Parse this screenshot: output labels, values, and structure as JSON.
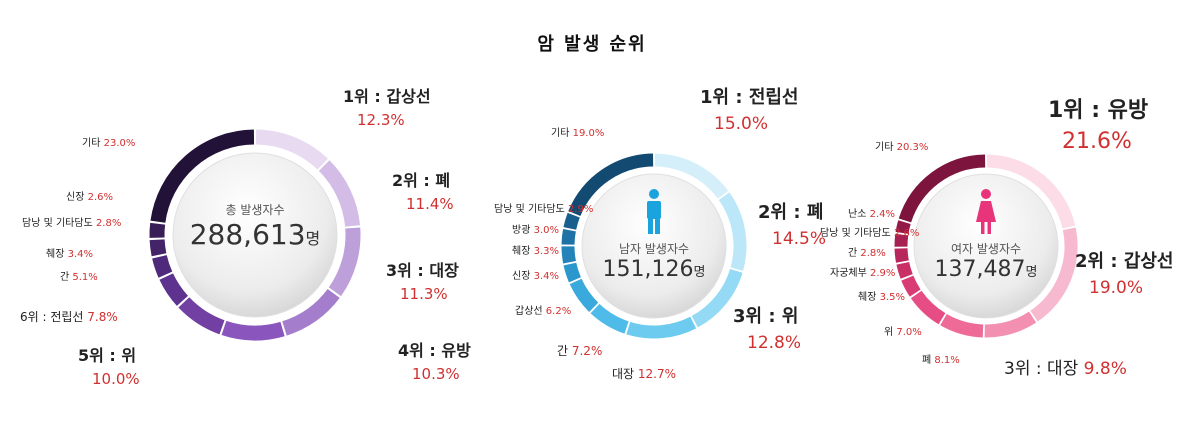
{
  "title": "암 발생 순위",
  "colors": {
    "percent": "#d03030",
    "title": "#111111"
  },
  "chart_data": [
    {
      "type": "pie",
      "center_label": "총 발생자수",
      "center_value": "288,613",
      "center_unit": "명",
      "slices": [
        {
          "name": "갑상선",
          "value": 12.3,
          "rank": "1위",
          "label": "1위 : 갑상선",
          "pct": "12.3%",
          "color": "#e7daf1"
        },
        {
          "name": "폐",
          "value": 11.4,
          "rank": "2위",
          "label": "2위 : 폐",
          "pct": "11.4%",
          "color": "#d3bde6"
        },
        {
          "name": "대장",
          "value": 11.3,
          "rank": "3위",
          "label": "3위 : 대장",
          "pct": "11.3%",
          "color": "#bd9fd9"
        },
        {
          "name": "유방",
          "value": 10.3,
          "rank": "4위",
          "label": "4위 : 유방",
          "pct": "10.3%",
          "color": "#a47dcc"
        },
        {
          "name": "위",
          "value": 10.0,
          "rank": "5위",
          "label": "5위 : 위",
          "pct": "10.0%",
          "color": "#8a55bd"
        },
        {
          "name": "전립선",
          "value": 7.8,
          "rank": "6위",
          "label": "6위 : 전립선",
          "pct": "7.8%",
          "color": "#7240a3"
        },
        {
          "name": "간",
          "value": 5.1,
          "label": "간",
          "pct": "5.1%",
          "color": "#5e3390"
        },
        {
          "name": "췌장",
          "value": 3.4,
          "label": "췌장",
          "pct": "3.4%",
          "color": "#4f2a7c"
        },
        {
          "name": "담낭 및 기타담도",
          "value": 2.8,
          "label": "담낭 및 기타담도",
          "pct": "2.8%",
          "color": "#432468"
        },
        {
          "name": "신장",
          "value": 2.6,
          "label": "신장",
          "pct": "2.6%",
          "color": "#381d57"
        },
        {
          "name": "기타",
          "value": 23.0,
          "label": "기타",
          "pct": "23.0%",
          "color": "#231238"
        }
      ]
    },
    {
      "type": "pie",
      "center_label": "남자 발생자수",
      "center_value": "151,126",
      "center_unit": "명",
      "icon": "male-icon",
      "icon_color": "#1aa3dc",
      "slices": [
        {
          "name": "전립선",
          "value": 15.0,
          "rank": "1위",
          "label": "1위 : 전립선",
          "pct": "15.0%",
          "color": "#d4effa"
        },
        {
          "name": "폐",
          "value": 14.5,
          "rank": "2위",
          "label": "2위 : 폐",
          "pct": "14.5%",
          "color": "#bce7f8"
        },
        {
          "name": "위",
          "value": 12.8,
          "rank": "3위",
          "label": "3위 : 위",
          "pct": "12.8%",
          "color": "#94daf4"
        },
        {
          "name": "대장",
          "value": 12.7,
          "label": "대장",
          "pct": "12.7%",
          "color": "#6ccbef"
        },
        {
          "name": "간",
          "value": 7.2,
          "label": "간",
          "pct": "7.2%",
          "color": "#4fbbe8"
        },
        {
          "name": "갑상선",
          "value": 6.2,
          "label": "갑상선",
          "pct": "6.2%",
          "color": "#3aa9dc"
        },
        {
          "name": "신장",
          "value": 3.4,
          "label": "신장",
          "pct": "3.4%",
          "color": "#2c97cd"
        },
        {
          "name": "췌장",
          "value": 3.3,
          "label": "췌장",
          "pct": "3.3%",
          "color": "#2484ba"
        },
        {
          "name": "방광",
          "value": 3.0,
          "label": "방광",
          "pct": "3.0%",
          "color": "#1e72a5"
        },
        {
          "name": "담낭 및 기타담도",
          "value": 2.9,
          "label": "담낭 및 기타담도",
          "pct": "2.9%",
          "color": "#195f8e"
        },
        {
          "name": "기타",
          "value": 19.0,
          "label": "기타",
          "pct": "19.0%",
          "color": "#134a72"
        }
      ]
    },
    {
      "type": "pie",
      "center_label": "여자 발생자수",
      "center_value": "137,487",
      "center_unit": "명",
      "icon": "female-icon",
      "icon_color": "#e8347a",
      "slices": [
        {
          "name": "유방",
          "value": 21.6,
          "rank": "1위",
          "label": "1위 : 유방",
          "pct": "21.6%",
          "color": "#fbdce7"
        },
        {
          "name": "갑상선",
          "value": 19.0,
          "rank": "2위",
          "label": "2위 : 갑상선",
          "pct": "19.0%",
          "color": "#f7b9cf"
        },
        {
          "name": "대장",
          "value": 9.8,
          "rank": "3위",
          "label": "3위 : 대장",
          "pct": "9.8%",
          "color": "#f390b2"
        },
        {
          "name": "폐",
          "value": 8.1,
          "label": "폐",
          "pct": "8.1%",
          "color": "#ee6b98"
        },
        {
          "name": "위",
          "value": 7.0,
          "label": "위",
          "pct": "7.0%",
          "color": "#e64d84"
        },
        {
          "name": "췌장",
          "value": 3.5,
          "label": "췌장",
          "pct": "3.5%",
          "color": "#d93c74"
        },
        {
          "name": "자궁체부",
          "value": 2.9,
          "label": "자궁체부",
          "pct": "2.9%",
          "color": "#c93066"
        },
        {
          "name": "간",
          "value": 2.8,
          "label": "간",
          "pct": "2.8%",
          "color": "#b8275b"
        },
        {
          "name": "담낭 및 기타담도",
          "value": 2.6,
          "label": "담낭 및 기타담도",
          "pct": "2.6%",
          "color": "#a62051"
        },
        {
          "name": "난소",
          "value": 2.4,
          "label": "난소",
          "pct": "2.4%",
          "color": "#931a48"
        },
        {
          "name": "기타",
          "value": 20.3,
          "label": "기타",
          "pct": "20.3%",
          "color": "#7d143d"
        }
      ]
    }
  ]
}
